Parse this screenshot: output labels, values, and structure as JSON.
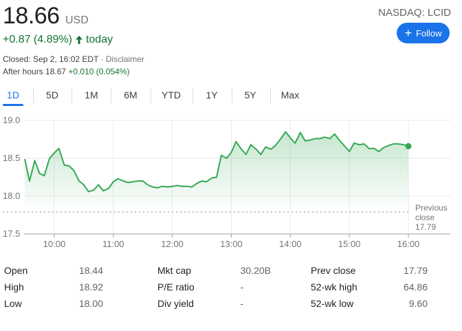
{
  "header": {
    "price": "18.66",
    "currency": "USD",
    "ticker": "NASDAQ: LCID",
    "follow_label": "Follow",
    "change": "+0.87 (4.89%)",
    "change_period": "today",
    "closed_text": "Closed: Sep 2, 16:02 EDT",
    "disclaimer": " · Disclaimer",
    "after_hours_label": "After hours 18.67",
    "after_hours_change": "+0.010 (0.054%)"
  },
  "colors": {
    "positive": "#137333",
    "line": "#34a853",
    "accent": "#1a73e8"
  },
  "tabs": [
    {
      "label": "1D",
      "active": true
    },
    {
      "label": "5D",
      "active": false
    },
    {
      "label": "1M",
      "active": false
    },
    {
      "label": "6M",
      "active": false
    },
    {
      "label": "YTD",
      "active": false
    },
    {
      "label": "1Y",
      "active": false
    },
    {
      "label": "5Y",
      "active": false
    },
    {
      "label": "Max",
      "active": false
    }
  ],
  "chart_data": {
    "type": "area",
    "ylim": [
      17.5,
      19.0
    ],
    "yticks": [
      "19.0",
      "18.5",
      "18.0",
      "17.5"
    ],
    "xticks": [
      "10:00",
      "11:00",
      "12:00",
      "13:00",
      "14:00",
      "15:00",
      "16:00"
    ],
    "x_range_hours": [
      9.5,
      16.0
    ],
    "previous_close": 17.79,
    "previous_close_label_line1": "Previous",
    "previous_close_label_line2": "close",
    "previous_close_value": "17.79",
    "grid": true,
    "series": [
      {
        "x": [
          9.5,
          9.58,
          9.67,
          9.75,
          9.83,
          9.92,
          10.0,
          10.08,
          10.17,
          10.25,
          10.33,
          10.42,
          10.5,
          10.58,
          10.67,
          10.75,
          10.83,
          10.92,
          11.0,
          11.08,
          11.17,
          11.25,
          11.33,
          11.42,
          11.5,
          11.58,
          11.67,
          11.75,
          11.83,
          11.92,
          12.0,
          12.08,
          12.17,
          12.25,
          12.33,
          12.42,
          12.5,
          12.58,
          12.67,
          12.75,
          12.83,
          12.92,
          13.0,
          13.08,
          13.17,
          13.25,
          13.33,
          13.42,
          13.5,
          13.58,
          13.67,
          13.75,
          13.83,
          13.92,
          14.0,
          14.08,
          14.17,
          14.25,
          14.33,
          14.42,
          14.5,
          14.58,
          14.67,
          14.75,
          14.83,
          14.92,
          15.0,
          15.08,
          15.17,
          15.25,
          15.33,
          15.42,
          15.5,
          15.58,
          15.67,
          15.75,
          15.83,
          15.92,
          16.0
        ],
        "values": [
          18.49,
          18.2,
          18.47,
          18.3,
          18.27,
          18.5,
          18.57,
          18.63,
          18.41,
          18.4,
          18.34,
          18.2,
          18.15,
          18.06,
          18.08,
          18.15,
          18.07,
          18.1,
          18.19,
          18.23,
          18.2,
          18.18,
          18.19,
          18.2,
          18.2,
          18.15,
          18.12,
          18.11,
          18.13,
          18.12,
          18.13,
          18.14,
          18.13,
          18.13,
          18.12,
          18.17,
          18.2,
          18.19,
          18.24,
          18.25,
          18.54,
          18.5,
          18.58,
          18.72,
          18.62,
          18.55,
          18.68,
          18.62,
          18.55,
          18.65,
          18.62,
          18.67,
          18.75,
          18.85,
          18.77,
          18.7,
          18.84,
          18.73,
          18.74,
          18.76,
          18.76,
          18.78,
          18.76,
          18.82,
          18.74,
          18.66,
          18.59,
          18.7,
          18.68,
          18.69,
          18.63,
          18.63,
          18.59,
          18.64,
          18.67,
          18.69,
          18.69,
          18.68,
          18.66
        ]
      }
    ]
  },
  "stats": {
    "col1": [
      {
        "label": "Open",
        "value": "18.44"
      },
      {
        "label": "High",
        "value": "18.92"
      },
      {
        "label": "Low",
        "value": "18.00"
      }
    ],
    "col2": [
      {
        "label": "Mkt cap",
        "value": "30.20B"
      },
      {
        "label": "P/E ratio",
        "value": "-"
      },
      {
        "label": "Div yield",
        "value": "-"
      }
    ],
    "col3": [
      {
        "label": "Prev close",
        "value": "17.79"
      },
      {
        "label": "52-wk high",
        "value": "64.86"
      },
      {
        "label": "52-wk low",
        "value": "9.60"
      }
    ]
  }
}
